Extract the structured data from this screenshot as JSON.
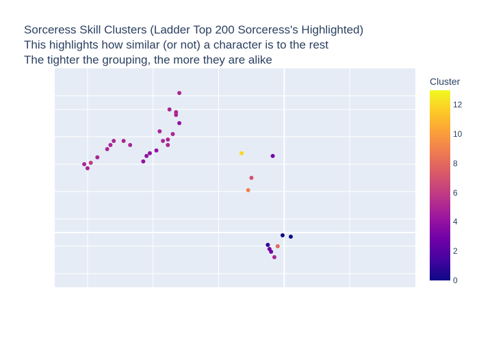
{
  "chart_data": {
    "type": "scatter",
    "title_lines": [
      "Sorceress Skill Clusters (Ladder Top 200 Sorceress's Highlighted)",
      "This highlights how similar (or not) a character is to the rest",
      "The tighter the grouping, the more they are alike"
    ],
    "xlabel": "",
    "ylabel": "",
    "axes_hidden": true,
    "grid": true,
    "colorbar": {
      "title": "Cluster",
      "range": [
        0,
        13
      ],
      "ticks": [
        0,
        2,
        4,
        6,
        8,
        10,
        12
      ],
      "colorscale": [
        "#0d0887",
        "#46039f",
        "#7201a8",
        "#9c179e",
        "#bd3786",
        "#d8576b",
        "#ed7953",
        "#fb9f3a",
        "#fdca26",
        "#f0f921"
      ]
    },
    "points": [
      {
        "x": -3.2,
        "y": 5.1,
        "c": 5
      },
      {
        "x": -3.3,
        "y": 4.4,
        "c": 5
      },
      {
        "x": -3.3,
        "y": 4.3,
        "c": 5
      },
      {
        "x": -3.5,
        "y": 4.5,
        "c": 5
      },
      {
        "x": -3.2,
        "y": 4.0,
        "c": 4
      },
      {
        "x": -3.55,
        "y": 3.2,
        "c": 5
      },
      {
        "x": -3.55,
        "y": 3.4,
        "c": 5
      },
      {
        "x": -3.4,
        "y": 3.6,
        "c": 5
      },
      {
        "x": -3.7,
        "y": 3.35,
        "c": 5
      },
      {
        "x": -3.8,
        "y": 3.7,
        "c": 5
      },
      {
        "x": -4.3,
        "y": 2.6,
        "c": 4
      },
      {
        "x": -4.2,
        "y": 2.8,
        "c": 4
      },
      {
        "x": -4.1,
        "y": 2.9,
        "c": 4
      },
      {
        "x": -3.9,
        "y": 3.0,
        "c": 4
      },
      {
        "x": -4.7,
        "y": 3.2,
        "c": 5
      },
      {
        "x": -4.9,
        "y": 3.35,
        "c": 5
      },
      {
        "x": -5.2,
        "y": 3.35,
        "c": 5
      },
      {
        "x": -5.3,
        "y": 3.2,
        "c": 5
      },
      {
        "x": -5.4,
        "y": 3.05,
        "c": 5
      },
      {
        "x": -5.7,
        "y": 2.75,
        "c": 5
      },
      {
        "x": -5.9,
        "y": 2.55,
        "c": 6
      },
      {
        "x": -6.0,
        "y": 2.35,
        "c": 5
      },
      {
        "x": -6.1,
        "y": 2.5,
        "c": 5
      },
      {
        "x": -0.05,
        "y": -0.1,
        "c": 0
      },
      {
        "x": 0.2,
        "y": -0.15,
        "c": 0
      },
      {
        "x": -0.3,
        "y": -0.9,
        "c": 5
      },
      {
        "x": -0.2,
        "y": -0.5,
        "c": 8
      },
      {
        "x": -0.5,
        "y": -0.45,
        "c": 1
      },
      {
        "x": -0.45,
        "y": -0.6,
        "c": 3
      },
      {
        "x": -0.4,
        "y": -0.7,
        "c": 3
      },
      {
        "x": -1.3,
        "y": 2.9,
        "c": 12
      },
      {
        "x": -0.35,
        "y": 2.8,
        "c": 3
      },
      {
        "x": -1.1,
        "y": 1.55,
        "c": 9
      },
      {
        "x": -1.0,
        "y": 2.0,
        "c": 7
      }
    ]
  }
}
